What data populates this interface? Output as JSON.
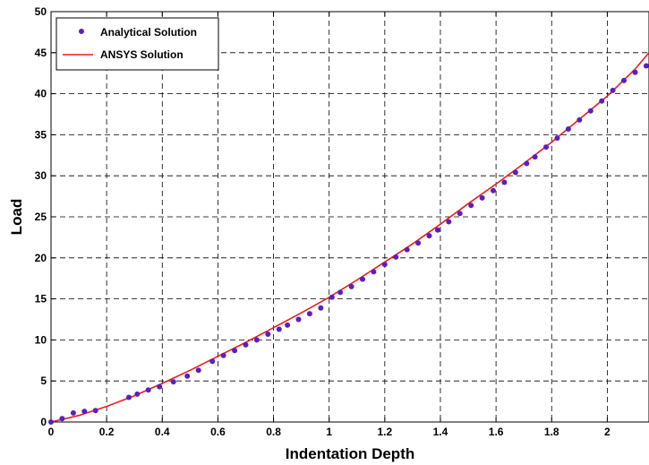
{
  "chart_data": {
    "type": "line",
    "xlabel": "Indentation Depth",
    "ylabel": "Load",
    "xlim": [
      0,
      2.15
    ],
    "ylim": [
      0,
      50
    ],
    "xticks": [
      "0",
      "0.2",
      "0.4",
      "0.6",
      "0.8",
      "1",
      "1.2",
      "1.4",
      "1.6",
      "1.8",
      "2"
    ],
    "yticks": [
      "0",
      "5",
      "10",
      "15",
      "20",
      "25",
      "30",
      "35",
      "40",
      "45",
      "50"
    ],
    "grid": true,
    "legend_position": "top-left",
    "series": [
      {
        "name": "Analytical Solution",
        "style": "markers",
        "color": "#5a1fc0",
        "x": [
          0,
          0.04,
          0.08,
          0.12,
          0.16,
          0.28,
          0.31,
          0.35,
          0.39,
          0.44,
          0.49,
          0.53,
          0.58,
          0.62,
          0.66,
          0.7,
          0.74,
          0.78,
          0.82,
          0.85,
          0.89,
          0.93,
          0.97,
          1.01,
          1.04,
          1.08,
          1.12,
          1.16,
          1.2,
          1.24,
          1.28,
          1.32,
          1.36,
          1.39,
          1.43,
          1.47,
          1.51,
          1.55,
          1.59,
          1.63,
          1.67,
          1.71,
          1.74,
          1.78,
          1.82,
          1.86,
          1.9,
          1.94,
          1.98,
          2.02,
          2.06,
          2.1,
          2.14
        ],
        "y": [
          0,
          0.4,
          1.1,
          1.3,
          1.4,
          3.0,
          3.4,
          3.9,
          4.3,
          4.9,
          5.6,
          6.3,
          7.4,
          8.1,
          8.7,
          9.4,
          10.0,
          10.7,
          11.3,
          11.8,
          12.5,
          13.2,
          13.9,
          15.2,
          15.8,
          16.5,
          17.4,
          18.3,
          19.2,
          20.1,
          21.0,
          21.8,
          22.7,
          23.4,
          24.4,
          25.4,
          26.4,
          27.3,
          28.2,
          29.2,
          30.4,
          31.5,
          32.3,
          33.5,
          34.6,
          35.7,
          36.8,
          37.9,
          39.1,
          40.4,
          41.6,
          42.6,
          43.4
        ]
      },
      {
        "name": "ANSYS Solution",
        "style": "line",
        "color": "#ee1c1c",
        "x": [
          0,
          0.1,
          0.2,
          0.3,
          0.4,
          0.5,
          0.6,
          0.7,
          0.8,
          0.9,
          1.0,
          1.1,
          1.2,
          1.3,
          1.4,
          1.5,
          1.6,
          1.7,
          1.8,
          1.9,
          2.0,
          2.1,
          2.15
        ],
        "y": [
          0,
          0.8,
          1.9,
          3.2,
          4.7,
          6.3,
          8.0,
          9.7,
          11.5,
          13.3,
          15.2,
          17.3,
          19.5,
          21.7,
          24.1,
          26.6,
          29.0,
          31.5,
          34.1,
          36.9,
          39.7,
          43.0,
          45.0
        ]
      }
    ]
  }
}
